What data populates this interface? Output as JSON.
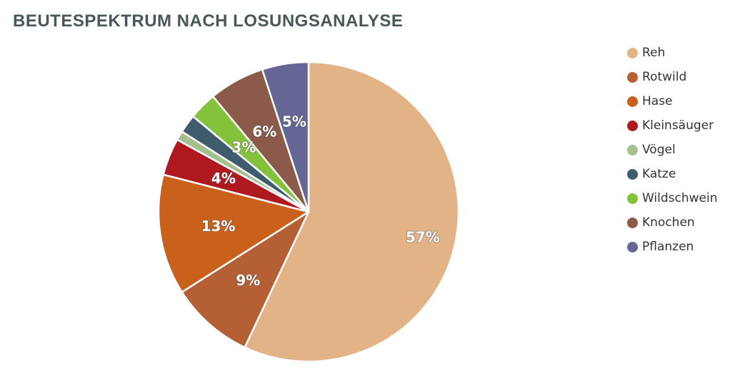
{
  "chart_data": {
    "type": "pie",
    "title": "BEUTESPEKTRUM NACH LOSUNGSANALYSE",
    "legend_position": "right",
    "slices": [
      {
        "name": "Reh",
        "value": 57,
        "label": "57%",
        "color": "#e2b386"
      },
      {
        "name": "Rotwild",
        "value": 9,
        "label": "9%",
        "color": "#b55f34"
      },
      {
        "name": "Hase",
        "value": 13,
        "label": "13%",
        "color": "#c9611c"
      },
      {
        "name": "Kleinsäuger",
        "value": 4,
        "label": "4%",
        "color": "#b0181f"
      },
      {
        "name": "Vögel",
        "value": 1,
        "label": "",
        "color": "#a4c08e"
      },
      {
        "name": "Katze",
        "value": 2,
        "label": "",
        "color": "#3e5c6c"
      },
      {
        "name": "Wildschwein",
        "value": 3,
        "label": "3%",
        "color": "#83c23a"
      },
      {
        "name": "Knochen",
        "value": 6,
        "label": "6%",
        "color": "#8b5a4b"
      },
      {
        "name": "Pflanzen",
        "value": 5,
        "label": "5%",
        "color": "#666694"
      }
    ]
  }
}
